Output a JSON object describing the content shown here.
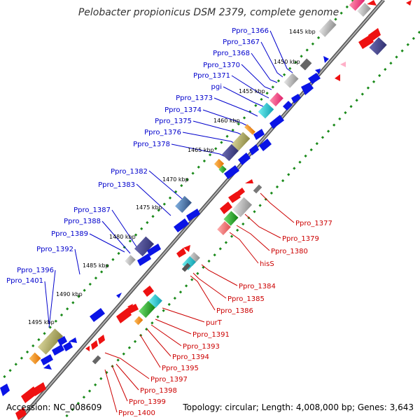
{
  "title": "Pelobacter propionicus DSM 2379, complete genome",
  "footer": {
    "accession": "Accession: NC_008609",
    "summary": "Topology: circular; Length: 4,008,000 bp; Genes: 3,643"
  },
  "kbp_ticks": [
    "1445 kbp",
    "1450 kbp",
    "1455 kbp",
    "1460 kbp",
    "1465 kbp",
    "1470 kbp",
    "1475 kbp",
    "1480 kbp",
    "1485 kbp",
    "1490 kbp",
    "1495 kbp"
  ],
  "forward_labels": [
    "Ppro_1366",
    "Ppro_1367",
    "Ppro_1368",
    "Ppro_1370",
    "Ppro_1371",
    "pgi",
    "Ppro_1373",
    "Ppro_1374",
    "Ppro_1375",
    "Ppro_1376",
    "Ppro_1378",
    "Ppro_1382",
    "Ppro_1383",
    "Ppro_1387",
    "Ppro_1388",
    "Ppro_1389",
    "Ppro_1392",
    "Ppro_1396",
    "Ppro_1401"
  ],
  "reverse_labels": [
    "Ppro_1377",
    "Ppro_1379",
    "Ppro_1380",
    "hisS",
    "Ppro_1384",
    "Ppro_1385",
    "Ppro_1386",
    "purT",
    "Ppro_1391",
    "Ppro_1393",
    "Ppro_1394",
    "Ppro_1395",
    "Ppro_1397",
    "Ppro_1398",
    "Ppro_1399",
    "Ppro_1400"
  ],
  "colors": {
    "forward_gene": "#0a14e6",
    "reverse_gene": "#ee1111",
    "forward_label": "#0000cc",
    "reverse_label": "#cc0000",
    "backbone": "#888888",
    "tick_ring": "#1a8a1a"
  }
}
